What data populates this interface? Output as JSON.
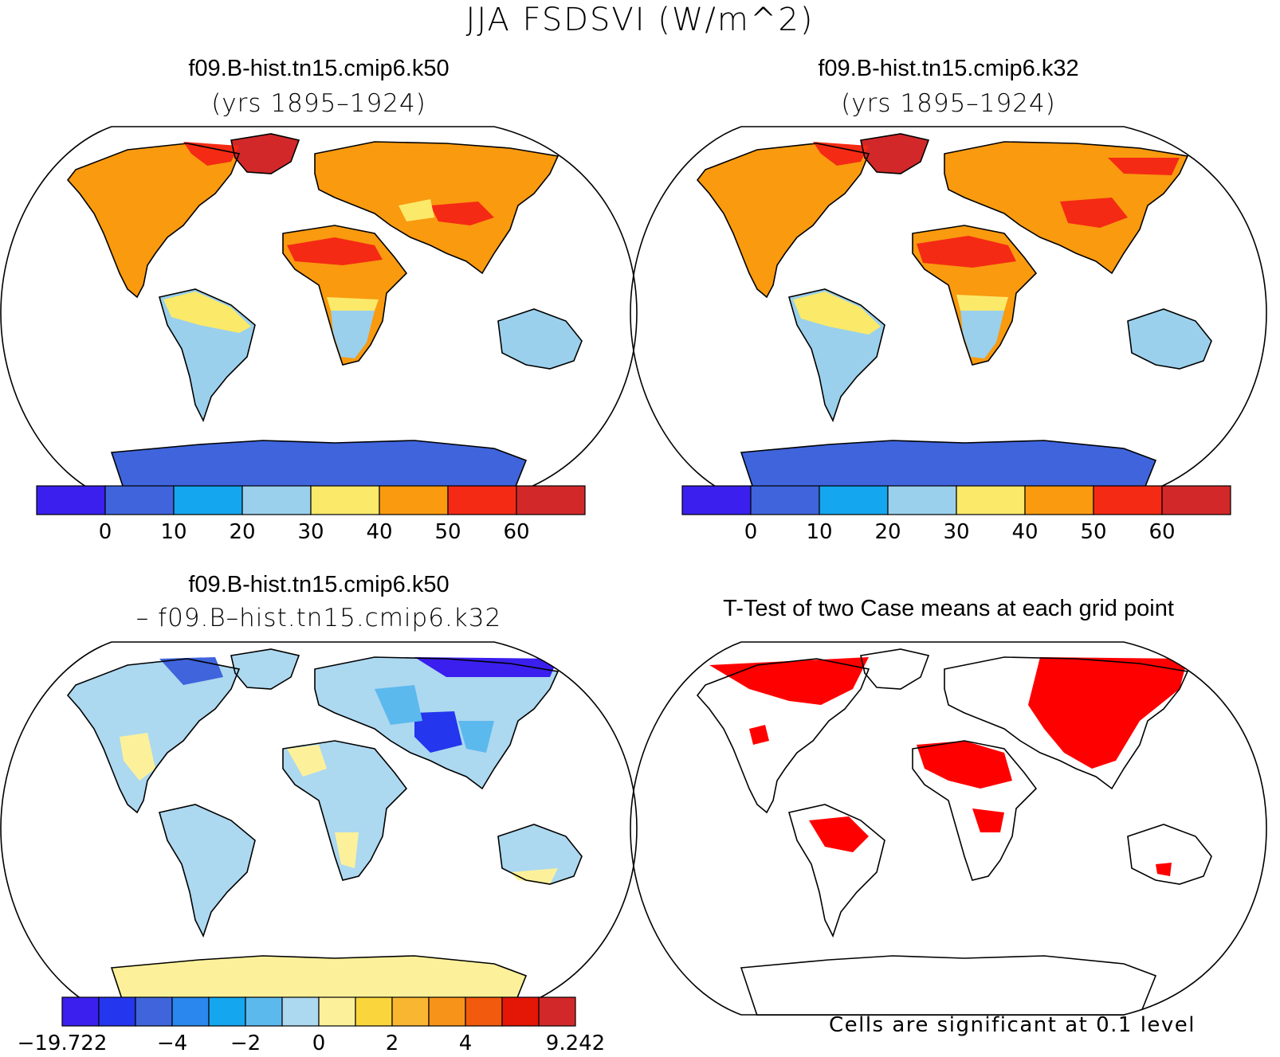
{
  "title": "JJA FSDSVI (W/m^2)",
  "panels": [
    {
      "id": "k50",
      "title": "f09.B-hist.tn15.cmip6.k50",
      "subtitle": "(yrs 1895–1924)"
    },
    {
      "id": "k32",
      "title": "f09.B-hist.tn15.cmip6.k32",
      "subtitle": "(yrs 1895–1924)"
    },
    {
      "id": "diff",
      "title": "f09.B-hist.tn15.cmip6.k50",
      "subtitle": "– f09.B–hist.tn15.cmip6.k32"
    },
    {
      "id": "ttest",
      "title": "T-Test of two Case means at each grid point",
      "subtitle": ""
    }
  ],
  "colorbars": {
    "absolute": {
      "colors": [
        "#3a1fee",
        "#3f64dc",
        "#14a6ee",
        "#9ad0ec",
        "#fbe96a",
        "#f99a0f",
        "#f42a14",
        "#d2282a"
      ],
      "labels": [
        "0",
        "10",
        "20",
        "30",
        "40",
        "50",
        "60"
      ]
    },
    "difference": {
      "colors": [
        "#3a1fee",
        "#2436ee",
        "#3f64dc",
        "#2a87ee",
        "#14a6ee",
        "#5cb9ee",
        "#acd8f0",
        "#fcf19a",
        "#fad63c",
        "#f9b630",
        "#f8931a",
        "#f25a0e",
        "#e41605",
        "#d2282a"
      ],
      "labels": [
        "−19.722",
        "−4",
        "−2",
        "0",
        "2",
        "4",
        "9.242"
      ]
    }
  },
  "significance_note": "Cells are significant at 0.1 level",
  "significance_color": "#ff0000"
}
